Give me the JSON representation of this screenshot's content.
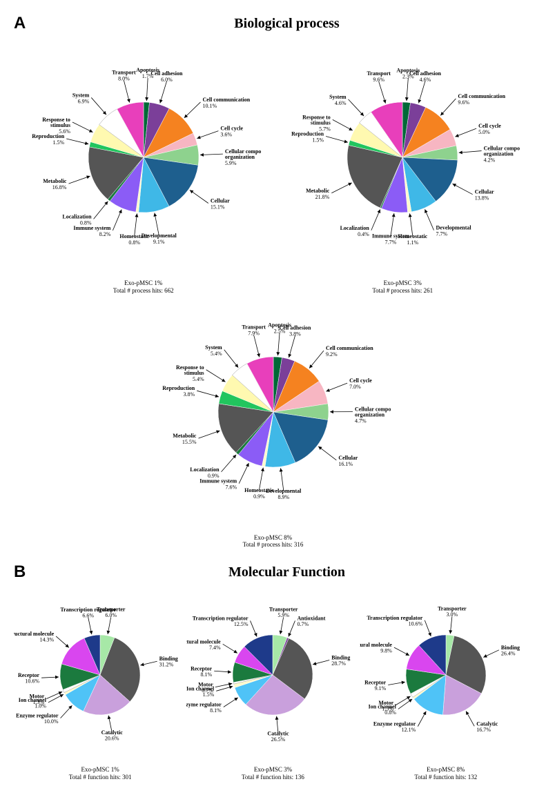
{
  "sectionA": {
    "label": "A",
    "title": "Biological process",
    "pieSize": 340,
    "pieRadius": 80,
    "labelRadius": 115,
    "fontsize": 8,
    "charts": [
      {
        "caption_line1": "Exo-pMSC 1%",
        "caption_line2": "Total # process hits: 662",
        "slices": [
          {
            "label": "Apoptosis",
            "pct": 1.7,
            "color": "#006837"
          },
          {
            "label": "Cell adhesion",
            "pct": 6.0,
            "color": "#7b3f99"
          },
          {
            "label": "Cell communication",
            "pct": 10.1,
            "color": "#f58220"
          },
          {
            "label": "Cell cycle",
            "pct": 3.6,
            "color": "#f7b6c2"
          },
          {
            "label": "Cellular component organization",
            "pct": 5.9,
            "color": "#8ed28e"
          },
          {
            "label": "Cellular",
            "pct": 15.1,
            "color": "#1e5f8e"
          },
          {
            "label": "Developmental",
            "pct": 9.1,
            "color": "#3fb8e7"
          },
          {
            "label": "Homeostatic",
            "pct": 0.8,
            "color": "#fffacd"
          },
          {
            "label": "Immune system",
            "pct": 8.2,
            "color": "#8b5cf6"
          },
          {
            "label": "Localization",
            "pct": 0.8,
            "color": "#1b7a3e"
          },
          {
            "label": "Metabolic",
            "pct": 16.8,
            "color": "#555555"
          },
          {
            "label": "Reproduction",
            "pct": 1.5,
            "color": "#22c55e"
          },
          {
            "label": "Response to stimulus",
            "pct": 5.6,
            "color": "#fff9b0"
          },
          {
            "label": "System",
            "pct": 6.9,
            "color": "#ffffff",
            "stroke": "#999"
          },
          {
            "label": "Transport",
            "pct": 8.0,
            "color": "#e83fbb"
          }
        ]
      },
      {
        "caption_line1": "Exo-pMSC 3%",
        "caption_line2": "Total # process hits: 261",
        "slices": [
          {
            "label": "Apoptosis",
            "pct": 2.3,
            "color": "#006837"
          },
          {
            "label": "Cell adhesion",
            "pct": 4.6,
            "color": "#7b3f99"
          },
          {
            "label": "Cell communication",
            "pct": 9.6,
            "color": "#f58220"
          },
          {
            "label": "Cell cycle",
            "pct": 5.0,
            "color": "#f7b6c2"
          },
          {
            "label": "Cellular component organization",
            "pct": 4.2,
            "color": "#8ed28e"
          },
          {
            "label": "Cellular",
            "pct": 13.8,
            "color": "#1e5f8e"
          },
          {
            "label": "Developmental",
            "pct": 7.7,
            "color": "#3fb8e7"
          },
          {
            "label": "Homeostatic",
            "pct": 1.1,
            "color": "#fffacd"
          },
          {
            "label": "Immune system",
            "pct": 7.7,
            "color": "#8b5cf6"
          },
          {
            "label": "Localization",
            "pct": 0.4,
            "color": "#1b7a3e"
          },
          {
            "label": "Metabolic",
            "pct": 21.8,
            "color": "#555555"
          },
          {
            "label": "Reproduction",
            "pct": 1.5,
            "color": "#22c55e"
          },
          {
            "label": "Response to stimulus",
            "pct": 5.7,
            "color": "#fff9b0"
          },
          {
            "label": "System",
            "pct": 4.6,
            "color": "#ffffff",
            "stroke": "#999"
          },
          {
            "label": "Transport",
            "pct": 9.6,
            "color": "#e83fbb"
          }
        ]
      },
      {
        "caption_line1": "Exo-pMSC 8%",
        "caption_line2": "Total # process hits: 316",
        "slices": [
          {
            "label": "Apoptosis",
            "pct": 2.5,
            "color": "#006837"
          },
          {
            "label": "Cell adhesion",
            "pct": 3.8,
            "color": "#7b3f99"
          },
          {
            "label": "Cell communication",
            "pct": 9.2,
            "color": "#f58220"
          },
          {
            "label": "Cell cycle",
            "pct": 7.0,
            "color": "#f7b6c2"
          },
          {
            "label": "Cellular component organization",
            "pct": 4.7,
            "color": "#8ed28e"
          },
          {
            "label": "Cellular",
            "pct": 16.1,
            "color": "#1e5f8e"
          },
          {
            "label": "Developmental",
            "pct": 8.9,
            "color": "#3fb8e7"
          },
          {
            "label": "Homeostatic",
            "pct": 0.9,
            "color": "#fffacd"
          },
          {
            "label": "Immune system",
            "pct": 7.6,
            "color": "#8b5cf6"
          },
          {
            "label": "Localization",
            "pct": 0.9,
            "color": "#1b7a3e"
          },
          {
            "label": "Metabolic",
            "pct": 15.5,
            "color": "#555555"
          },
          {
            "label": "Reproduction",
            "pct": 3.8,
            "color": "#22c55e"
          },
          {
            "label": "Response to stimulus",
            "pct": 5.4,
            "color": "#fff9b0"
          },
          {
            "label": "System",
            "pct": 5.4,
            "color": "#ffffff",
            "stroke": "#999"
          },
          {
            "label": "Transport",
            "pct": 7.9,
            "color": "#e83fbb"
          }
        ]
      }
    ]
  },
  "sectionB": {
    "label": "B",
    "title": "Molecular Function",
    "pieSize": 250,
    "pieRadius": 58,
    "labelRadius": 85,
    "fontsize": 7.5,
    "charts": [
      {
        "caption_line1": "Exo-pMSC 1%",
        "caption_line2": "Total # function hits: 301",
        "slices": [
          {
            "label": "Transporter",
            "pct": 6.0,
            "color": "#a7e8a7"
          },
          {
            "label": "Binding",
            "pct": 31.2,
            "color": "#555555"
          },
          {
            "label": "Catalytic",
            "pct": 20.6,
            "color": "#c9a0dc"
          },
          {
            "label": "Enzyme regulator",
            "pct": 10.0,
            "color": "#4fc3f7"
          },
          {
            "label": "Ion channel",
            "pct": 1.0,
            "color": "#fffacd"
          },
          {
            "label": "Motor",
            "pct": 1.3,
            "color": "#ffffff",
            "stroke": "#999"
          },
          {
            "label": "Receptor",
            "pct": 10.6,
            "color": "#1b7a3e"
          },
          {
            "label": "Structural molecule",
            "pct": 14.3,
            "color": "#d946ef"
          },
          {
            "label": "Transcription regulator",
            "pct": 6.6,
            "color": "#1e3a8a"
          }
        ]
      },
      {
        "caption_line1": "Exo-pMSC 3%",
        "caption_line2": "Total # function hits: 136",
        "slices": [
          {
            "label": "Transporter",
            "pct": 5.9,
            "color": "#a7e8a7"
          },
          {
            "label": "Antioxidant",
            "pct": 0.7,
            "color": "#7b3f99"
          },
          {
            "label": "Binding",
            "pct": 28.7,
            "color": "#555555"
          },
          {
            "label": "Catalytic",
            "pct": 26.5,
            "color": "#c9a0dc"
          },
          {
            "label": "Enzyme regulator",
            "pct": 8.1,
            "color": "#4fc3f7"
          },
          {
            "label": "Ion channel",
            "pct": 1.5,
            "color": "#fffacd"
          },
          {
            "label": "Motor",
            "pct": 0.7,
            "color": "#ffffff",
            "stroke": "#999"
          },
          {
            "label": "Receptor",
            "pct": 8.1,
            "color": "#1b7a3e"
          },
          {
            "label": "Structural molecule",
            "pct": 7.4,
            "color": "#d946ef"
          },
          {
            "label": "Transcription regulator",
            "pct": 12.5,
            "color": "#1e3a8a"
          }
        ]
      },
      {
        "caption_line1": "Exo-pMSC 8%",
        "caption_line2": "Total # function hits: 132",
        "slices": [
          {
            "label": "Transporter",
            "pct": 3.0,
            "color": "#a7e8a7"
          },
          {
            "label": "Binding",
            "pct": 26.4,
            "color": "#555555"
          },
          {
            "label": "Catalytic",
            "pct": 16.7,
            "color": "#c9a0dc"
          },
          {
            "label": "Enzyme regulator",
            "pct": 12.1,
            "color": "#4fc3f7"
          },
          {
            "label": "Ion channel",
            "pct": 0.8,
            "color": "#fffacd"
          },
          {
            "label": "Motor",
            "pct": 1.5,
            "color": "#ffffff",
            "stroke": "#999"
          },
          {
            "label": "Receptor",
            "pct": 9.1,
            "color": "#1b7a3e"
          },
          {
            "label": "Structural molecule",
            "pct": 9.8,
            "color": "#d946ef"
          },
          {
            "label": "Transcription regulator",
            "pct": 10.6,
            "color": "#1e3a8a"
          }
        ]
      }
    ]
  }
}
